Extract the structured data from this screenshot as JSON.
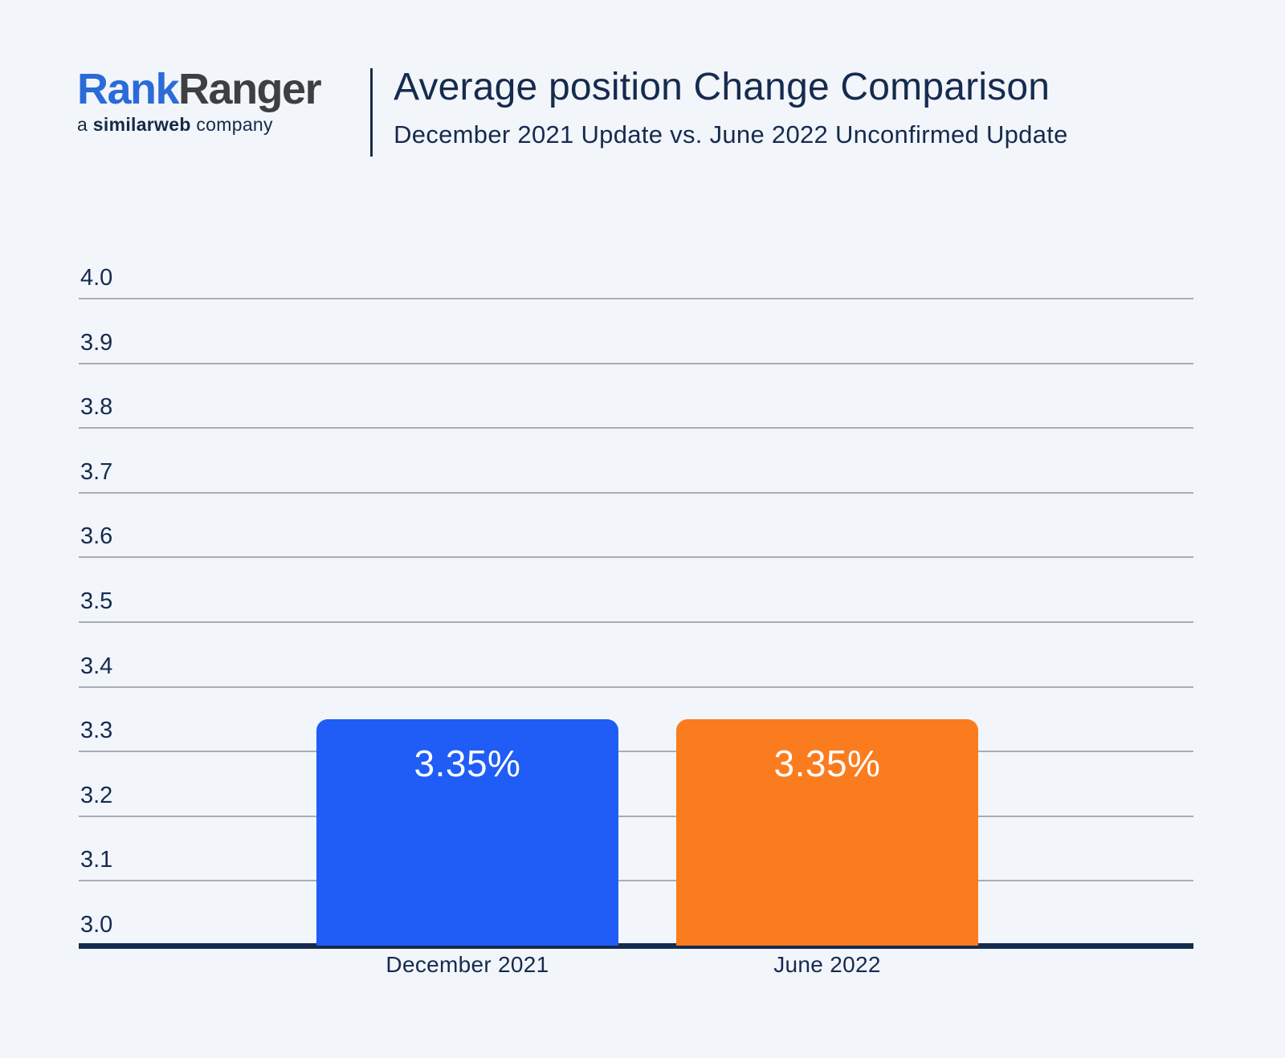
{
  "header": {
    "logo": {
      "part1": "Rank",
      "part2": "Ranger",
      "tagline_prefix": "a ",
      "tagline_bold": "similarweb",
      "tagline_suffix": " company"
    },
    "title": "Average position Change Comparison",
    "subtitle": "December 2021 Update vs. June 2022 Unconfirmed Update"
  },
  "colors": {
    "background": "#F2F5FA",
    "text_navy": "#152B4E",
    "gridline": "#A9ADB5",
    "axis_line": "#152B4E",
    "bar_blue": "#1F5DF6",
    "bar_orange": "#FB7C1E",
    "bar_label_text": "#FFFFFF",
    "logo_blue": "#2B6BD9",
    "logo_gray": "#3E3F41"
  },
  "chart_data": {
    "type": "bar",
    "title": "Average position Change Comparison",
    "subtitle": "December 2021 Update vs. June 2022 Unconfirmed Update",
    "categories": [
      "December 2021",
      "June 2022"
    ],
    "values": [
      3.35,
      3.35
    ],
    "bar_labels": [
      "3.35%",
      "3.35%"
    ],
    "bar_colors": [
      "#1F5DF6",
      "#FB7C1E"
    ],
    "ylim": [
      3.0,
      4.0
    ],
    "yticks": [
      4.0,
      3.9,
      3.8,
      3.7,
      3.6,
      3.5,
      3.4,
      3.3,
      3.2,
      3.1,
      3.0
    ],
    "ytick_labels": [
      "4.0",
      "3.9",
      "3.8",
      "3.7",
      "3.6",
      "3.5",
      "3.4",
      "3.3",
      "3.2",
      "3.1",
      "3.0"
    ],
    "grid": true,
    "legend": false,
    "xlabel": "",
    "ylabel": ""
  }
}
